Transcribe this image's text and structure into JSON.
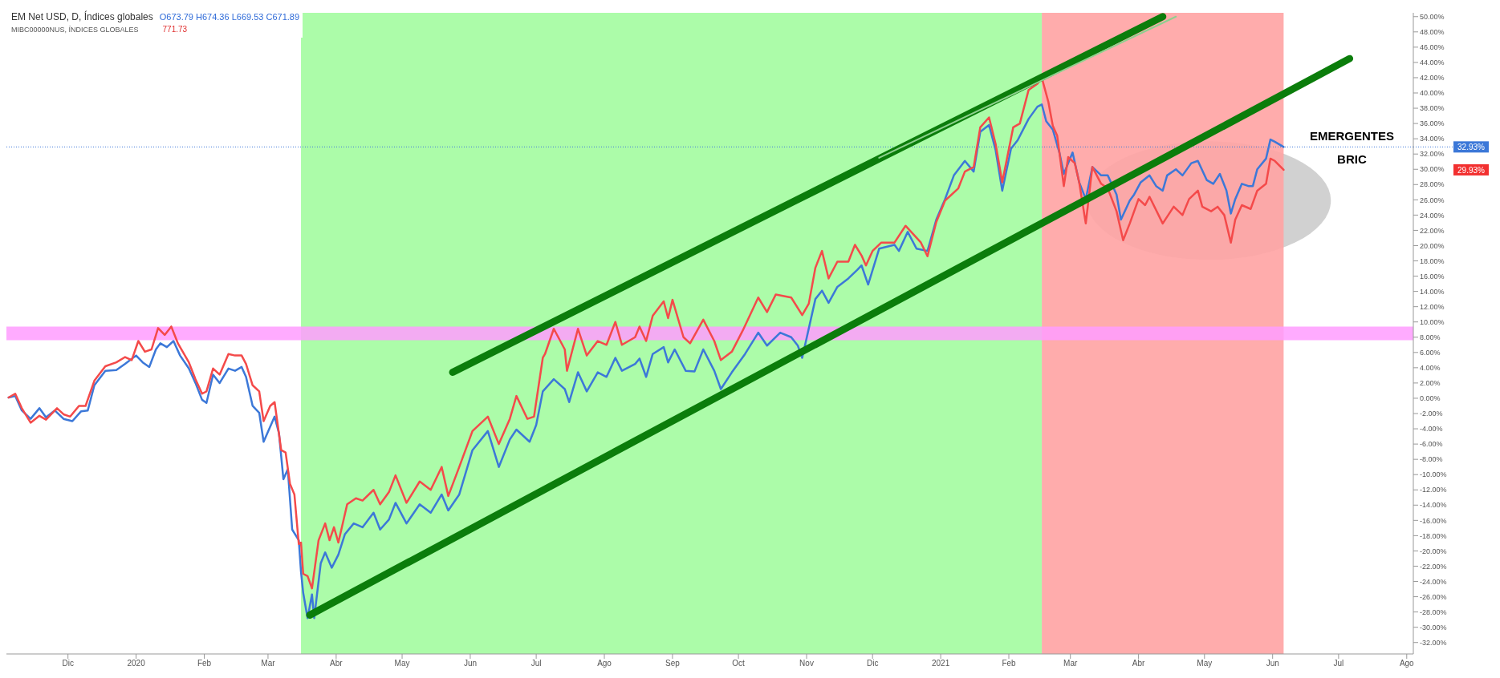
{
  "chart_data": {
    "type": "line",
    "title": "EM Net USD, D, Índices globales",
    "subtitle": "O673.79 H674.36 L669.53 C671.89",
    "annotations": [
      "MIBC00000NUS, ÍNDICES GLOBALES",
      "771.73",
      "29.93%"
    ],
    "xlim": [
      "2019-11-03",
      "2021-08-04"
    ],
    "xticks": [
      {
        "value": "2019-12-01",
        "label": "Dic"
      },
      {
        "value": "2020-01-01",
        "label": "2020"
      },
      {
        "value": "2020-02-01",
        "label": "Feb"
      },
      {
        "value": "2020-03-01",
        "label": "Mar"
      },
      {
        "value": "2020-04-01",
        "label": "Abr"
      },
      {
        "value": "2020-05-01",
        "label": "May"
      },
      {
        "value": "2020-06-01",
        "label": "Jun"
      },
      {
        "value": "2020-07-01",
        "label": "Jul"
      },
      {
        "value": "2020-08-01",
        "label": "Ago"
      },
      {
        "value": "2020-09-01",
        "label": "Sep"
      },
      {
        "value": "2020-10-01",
        "label": "Oct"
      },
      {
        "value": "2020-11-01",
        "label": "Nov"
      },
      {
        "value": "2020-12-01",
        "label": "Dic"
      },
      {
        "value": "2021-01-01",
        "label": "2021"
      },
      {
        "value": "2021-02-01",
        "label": "Feb"
      },
      {
        "value": "2021-03-01",
        "label": "Mar"
      },
      {
        "value": "2021-04-01",
        "label": "Abr"
      },
      {
        "value": "2021-05-01",
        "label": "May"
      },
      {
        "value": "2021-06-01",
        "label": "Jun"
      },
      {
        "value": "2021-07-01",
        "label": "Jul"
      },
      {
        "value": "2021-08-01",
        "label": "Ago"
      }
    ],
    "ylim": [
      -33.5,
      50.5
    ],
    "yticks": [
      {
        "value": -32,
        "label": "-32.00%"
      },
      {
        "value": -30,
        "label": "-30.00%"
      },
      {
        "value": -28,
        "label": "-28.00%"
      },
      {
        "value": -26,
        "label": "-26.00%"
      },
      {
        "value": -24,
        "label": "-24.00%"
      },
      {
        "value": -22,
        "label": "-22.00%"
      },
      {
        "value": -20,
        "label": "-20.00%"
      },
      {
        "value": -18,
        "label": "-18.00%"
      },
      {
        "value": -16,
        "label": "-16.00%"
      },
      {
        "value": -14,
        "label": "-14.00%"
      },
      {
        "value": -12,
        "label": "-12.00%"
      },
      {
        "value": -10,
        "label": "-10.00%"
      },
      {
        "value": -8,
        "label": "-8.00%"
      },
      {
        "value": -6,
        "label": "-6.00%"
      },
      {
        "value": -4,
        "label": "-4.00%"
      },
      {
        "value": -2,
        "label": "-2.00%"
      },
      {
        "value": 0,
        "label": "0.00%"
      },
      {
        "value": 2,
        "label": "2.00%"
      },
      {
        "value": 4,
        "label": "4.00%"
      },
      {
        "value": 6,
        "label": "6.00%"
      },
      {
        "value": 8,
        "label": "8.00%"
      },
      {
        "value": 10,
        "label": "10.00%"
      },
      {
        "value": 12,
        "label": "12.00%"
      },
      {
        "value": 14,
        "label": "14.00%"
      },
      {
        "value": 16,
        "label": "16.00%"
      },
      {
        "value": 18,
        "label": "18.00%"
      },
      {
        "value": 20,
        "label": "20.00%"
      },
      {
        "value": 22,
        "label": "22.00%"
      },
      {
        "value": 24,
        "label": "24.00%"
      },
      {
        "value": 26,
        "label": "26.00%"
      },
      {
        "value": 28,
        "label": "28.00%"
      },
      {
        "value": 30,
        "label": "30.00%"
      },
      {
        "value": 32,
        "label": "32.00%"
      },
      {
        "value": 34,
        "label": "34.00%"
      },
      {
        "value": 36,
        "label": "36.00%"
      },
      {
        "value": 38,
        "label": "38.00%"
      },
      {
        "value": 40,
        "label": "40.00%"
      },
      {
        "value": 42,
        "label": "42.00%"
      },
      {
        "value": 44,
        "label": "44.00%"
      },
      {
        "value": 46,
        "label": "46.00%"
      },
      {
        "value": 48,
        "label": "48.00%"
      },
      {
        "value": 50,
        "label": "50.00%"
      }
    ],
    "marker": "none",
    "bands": [
      {
        "axis": "x",
        "from": "2020-03-16",
        "to": "2021-02-16",
        "color": "#a3fca0"
      },
      {
        "axis": "x",
        "from": "2021-02-16",
        "to": "2021-06-06",
        "color": "#ffa3a3"
      },
      {
        "axis": "y",
        "from": 7.6,
        "to": 9.4,
        "color": "#ff9cff"
      }
    ],
    "ref_lines": [
      {
        "axis": "y",
        "value": 32.93,
        "label": "32.93%",
        "color": "#3c78d8",
        "line_style": "dotted"
      }
    ],
    "series": [
      {
        "name": "EMERGENTES",
        "color": "#3c78d8",
        "x": [
          "2019-11-04",
          "2019-11-07",
          "2019-11-10",
          "2019-11-14",
          "2019-11-18",
          "2019-11-21",
          "2019-11-25",
          "2019-11-29",
          "2019-12-03",
          "2019-12-07",
          "2019-12-10",
          "2019-12-13",
          "2019-12-18",
          "2019-12-23",
          "2019-12-27",
          "2020-01-01",
          "2020-01-04",
          "2020-01-07",
          "2020-01-10",
          "2020-01-12",
          "2020-01-15",
          "2020-01-18",
          "2020-01-21",
          "2020-01-25",
          "2020-01-28",
          "2020-01-31",
          "2020-02-02",
          "2020-02-05",
          "2020-02-08",
          "2020-02-12",
          "2020-02-15",
          "2020-02-18",
          "2020-02-20",
          "2020-02-23",
          "2020-02-26",
          "2020-02-28",
          "2020-03-04",
          "2020-03-06",
          "2020-03-08",
          "2020-03-10",
          "2020-03-12",
          "2020-03-15",
          "2020-03-16",
          "2020-03-17",
          "2020-03-19",
          "2020-03-21",
          "2020-03-22",
          "2020-03-25",
          "2020-03-27",
          "2020-03-30",
          "2020-04-02",
          "2020-04-05",
          "2020-04-09",
          "2020-04-13",
          "2020-04-18",
          "2020-04-21",
          "2020-04-25",
          "2020-04-28",
          "2020-05-03",
          "2020-05-09",
          "2020-05-14",
          "2020-05-19",
          "2020-05-22",
          "2020-05-27",
          "2020-06-02",
          "2020-06-09",
          "2020-06-14",
          "2020-06-19",
          "2020-06-22",
          "2020-06-28",
          "2020-07-01",
          "2020-07-04",
          "2020-07-09",
          "2020-07-14",
          "2020-07-16",
          "2020-07-20",
          "2020-07-24",
          "2020-07-29",
          "2020-08-02",
          "2020-08-06",
          "2020-08-09",
          "2020-08-15",
          "2020-08-17",
          "2020-08-20",
          "2020-08-23",
          "2020-08-28",
          "2020-08-30",
          "2020-09-02",
          "2020-09-07",
          "2020-09-11",
          "2020-09-15",
          "2020-09-20",
          "2020-09-23",
          "2020-09-28",
          "2020-10-04",
          "2020-10-10",
          "2020-10-14",
          "2020-10-20",
          "2020-10-25",
          "2020-10-28",
          "2020-10-30",
          "2020-11-05",
          "2020-11-08",
          "2020-11-11",
          "2020-11-15",
          "2020-11-20",
          "2020-11-24",
          "2020-11-26",
          "2020-11-29",
          "2020-12-04",
          "2020-12-11",
          "2020-12-13",
          "2020-12-17",
          "2020-12-21",
          "2020-12-26",
          "2020-12-30",
          "2021-01-03",
          "2021-01-07",
          "2021-01-12",
          "2021-01-16",
          "2021-01-19",
          "2021-01-23",
          "2021-01-26",
          "2021-01-29",
          "2021-02-02",
          "2021-02-05",
          "2021-02-10",
          "2021-02-14",
          "2021-02-16",
          "2021-02-18",
          "2021-02-21",
          "2021-02-24",
          "2021-02-26",
          "2021-02-28",
          "2021-03-02",
          "2021-03-05",
          "2021-03-08",
          "2021-03-11",
          "2021-03-15",
          "2021-03-18",
          "2021-03-22",
          "2021-03-24",
          "2021-03-28",
          "2021-03-30",
          "2021-04-02",
          "2021-04-06",
          "2021-04-09",
          "2021-04-12",
          "2021-04-14",
          "2021-04-18",
          "2021-04-21",
          "2021-04-25",
          "2021-04-28",
          "2021-05-02",
          "2021-05-05",
          "2021-05-08",
          "2021-05-11",
          "2021-05-13",
          "2021-05-15",
          "2021-05-18",
          "2021-05-21",
          "2021-05-23",
          "2021-05-25",
          "2021-05-29",
          "2021-05-31",
          "2021-06-02",
          "2021-06-06"
        ],
        "values": [
          0.1,
          0.3,
          -1.6,
          -2.7,
          -1.3,
          -2.5,
          -1.6,
          -2.7,
          -3.0,
          -1.7,
          -1.6,
          1.7,
          3.6,
          3.7,
          4.5,
          5.6,
          4.7,
          4.1,
          6.4,
          7.2,
          6.7,
          7.5,
          5.6,
          3.9,
          2.0,
          -0.2,
          -0.6,
          3.1,
          2.0,
          3.9,
          3.6,
          4.1,
          2.8,
          -1.0,
          -1.9,
          -5.7,
          -2.4,
          -4.6,
          -10.6,
          -9.3,
          -17.2,
          -18.6,
          -22.7,
          -25.5,
          -28.8,
          -25.7,
          -28.8,
          -21.6,
          -20.2,
          -22.2,
          -20.5,
          -17.8,
          -16.4,
          -16.9,
          -15.0,
          -17.2,
          -15.9,
          -13.7,
          -16.4,
          -13.9,
          -15.0,
          -12.6,
          -14.7,
          -12.6,
          -6.8,
          -4.3,
          -9.0,
          -5.4,
          -4.1,
          -5.7,
          -3.5,
          0.9,
          2.5,
          1.2,
          -0.5,
          3.4,
          0.9,
          3.4,
          2.8,
          5.3,
          3.6,
          4.5,
          5.2,
          2.8,
          5.8,
          6.7,
          4.7,
          6.4,
          3.6,
          3.5,
          6.4,
          3.6,
          1.2,
          3.4,
          5.8,
          8.6,
          6.9,
          8.6,
          8.0,
          6.9,
          5.3,
          13.0,
          14.1,
          12.5,
          14.6,
          15.7,
          16.8,
          17.4,
          14.9,
          19.6,
          20.1,
          19.3,
          21.8,
          19.6,
          19.3,
          23.4,
          26.1,
          29.2,
          31.1,
          29.7,
          34.9,
          35.8,
          32.5,
          27.2,
          32.7,
          33.8,
          36.6,
          38.2,
          38.5,
          36.3,
          35.2,
          32.2,
          29.4,
          30.8,
          32.2,
          28.3,
          26.1,
          30.3,
          29.2,
          29.2,
          26.7,
          23.4,
          25.9,
          26.7,
          28.3,
          29.2,
          27.8,
          27.2,
          29.2,
          30.0,
          29.2,
          30.8,
          31.1,
          28.6,
          28.1,
          29.4,
          27.2,
          24.2,
          26.1,
          28.1,
          27.8,
          27.8,
          30.0,
          31.4,
          33.9,
          33.6,
          32.93
        ]
      },
      {
        "name": "BRIC",
        "color": "#f44a4a",
        "x": [
          "2019-11-04",
          "2019-11-07",
          "2019-11-10",
          "2019-11-14",
          "2019-11-18",
          "2019-11-21",
          "2019-11-26",
          "2019-11-29",
          "2019-12-02",
          "2019-12-06",
          "2019-12-09",
          "2019-12-13",
          "2019-12-18",
          "2019-12-23",
          "2019-12-27",
          "2019-12-30",
          "2020-01-02",
          "2020-01-05",
          "2020-01-08",
          "2020-01-11",
          "2020-01-14",
          "2020-01-17",
          "2020-01-20",
          "2020-01-25",
          "2020-01-28",
          "2020-01-31",
          "2020-02-02",
          "2020-02-05",
          "2020-02-08",
          "2020-02-12",
          "2020-02-15",
          "2020-02-18",
          "2020-02-20",
          "2020-02-23",
          "2020-02-26",
          "2020-02-28",
          "2020-03-02",
          "2020-03-04",
          "2020-03-07",
          "2020-03-09",
          "2020-03-11",
          "2020-03-13",
          "2020-03-15",
          "2020-03-16",
          "2020-03-17",
          "2020-03-19",
          "2020-03-21",
          "2020-03-24",
          "2020-03-27",
          "2020-03-29",
          "2020-03-31",
          "2020-04-02",
          "2020-04-06",
          "2020-04-10",
          "2020-04-13",
          "2020-04-18",
          "2020-04-21",
          "2020-04-25",
          "2020-04-28",
          "2020-05-03",
          "2020-05-09",
          "2020-05-14",
          "2020-05-19",
          "2020-05-22",
          "2020-05-27",
          "2020-06-02",
          "2020-06-09",
          "2020-06-14",
          "2020-06-19",
          "2020-06-22",
          "2020-06-27",
          "2020-06-30",
          "2020-07-04",
          "2020-07-05",
          "2020-07-09",
          "2020-07-14",
          "2020-07-15",
          "2020-07-20",
          "2020-07-24",
          "2020-07-29",
          "2020-08-02",
          "2020-08-06",
          "2020-08-09",
          "2020-08-15",
          "2020-08-17",
          "2020-08-20",
          "2020-08-23",
          "2020-08-28",
          "2020-08-30",
          "2020-09-01",
          "2020-09-06",
          "2020-09-09",
          "2020-09-15",
          "2020-09-20",
          "2020-09-23",
          "2020-09-28",
          "2020-10-03",
          "2020-10-10",
          "2020-10-14",
          "2020-10-18",
          "2020-10-25",
          "2020-10-30",
          "2020-11-02",
          "2020-11-05",
          "2020-11-08",
          "2020-11-11",
          "2020-11-15",
          "2020-11-20",
          "2020-11-23",
          "2020-11-26",
          "2020-11-28",
          "2020-12-01",
          "2020-12-05",
          "2020-12-11",
          "2020-12-16",
          "2020-12-23",
          "2020-12-26",
          "2020-12-30",
          "2021-01-03",
          "2021-01-09",
          "2021-01-12",
          "2021-01-16",
          "2021-01-19",
          "2021-01-23",
          "2021-01-26",
          "2021-01-29",
          "2021-02-03",
          "2021-02-06",
          "2021-02-10",
          "2021-02-14",
          "2021-02-16",
          "2021-02-19",
          "2021-02-21",
          "2021-02-23",
          "2021-02-26",
          "2021-02-28",
          "2021-03-03",
          "2021-03-05",
          "2021-03-08",
          "2021-03-11",
          "2021-03-15",
          "2021-03-18",
          "2021-03-22",
          "2021-03-25",
          "2021-03-28",
          "2021-04-01",
          "2021-04-04",
          "2021-04-06",
          "2021-04-12",
          "2021-04-17",
          "2021-04-21",
          "2021-04-24",
          "2021-04-28",
          "2021-04-30",
          "2021-05-04",
          "2021-05-07",
          "2021-05-10",
          "2021-05-13",
          "2021-05-15",
          "2021-05-18",
          "2021-05-22",
          "2021-05-25",
          "2021-05-29",
          "2021-05-31",
          "2021-06-02",
          "2021-06-06"
        ],
        "values": [
          0.1,
          0.6,
          -1.3,
          -3.2,
          -2.3,
          -2.8,
          -1.3,
          -2.1,
          -2.4,
          -1.0,
          -1.0,
          2.3,
          4.2,
          4.7,
          5.4,
          5.0,
          7.5,
          6.1,
          6.4,
          9.2,
          8.3,
          9.4,
          7.2,
          4.7,
          2.5,
          0.6,
          0.9,
          3.9,
          3.1,
          5.8,
          5.6,
          5.6,
          4.5,
          1.7,
          0.9,
          -3.0,
          -1.0,
          -0.5,
          -6.8,
          -7.1,
          -11.2,
          -12.6,
          -19.1,
          -18.9,
          -23.0,
          -23.3,
          -24.9,
          -18.6,
          -16.4,
          -18.6,
          -16.9,
          -18.9,
          -13.9,
          -13.1,
          -13.4,
          -12.0,
          -13.9,
          -12.3,
          -10.1,
          -13.7,
          -10.9,
          -12.0,
          -9.0,
          -12.8,
          -9.0,
          -4.3,
          -2.4,
          -6.0,
          -2.7,
          0.3,
          -2.7,
          -2.4,
          5.3,
          5.8,
          9.1,
          6.4,
          3.6,
          9.1,
          5.6,
          7.5,
          7.0,
          10.0,
          7.0,
          8.0,
          9.4,
          7.5,
          10.8,
          12.7,
          10.5,
          12.9,
          8.0,
          7.2,
          10.3,
          7.5,
          5.0,
          6.1,
          8.9,
          13.2,
          11.3,
          13.6,
          13.2,
          10.9,
          12.4,
          17.1,
          19.3,
          15.7,
          17.9,
          17.9,
          20.1,
          18.7,
          17.4,
          19.3,
          20.4,
          20.4,
          22.6,
          20.4,
          18.6,
          23.1,
          25.9,
          27.5,
          29.7,
          30.3,
          35.5,
          36.8,
          33.3,
          28.3,
          35.5,
          36.0,
          40.4,
          41.2,
          42.0,
          38.8,
          35.7,
          34.4,
          27.8,
          31.6,
          30.8,
          28.3,
          22.9,
          30.3,
          28.1,
          27.5,
          24.5,
          20.7,
          22.9,
          26.1,
          25.3,
          26.4,
          22.9,
          25.1,
          24.0,
          26.1,
          27.2,
          25.1,
          24.5,
          25.1,
          24.0,
          20.4,
          23.4,
          25.3,
          24.8,
          27.2,
          28.1,
          31.4,
          31.1,
          29.93
        ]
      },
      {
        "type": "line",
        "color": "#0b7d0b",
        "x": [
          "2020-05-24",
          "2021-04-12"
        ],
        "values": [
          3.4,
          50
        ]
      },
      {
        "type": "line",
        "color": "#8fd08f",
        "x": [
          "2020-12-04",
          "2021-04-18"
        ],
        "values": [
          31.5,
          50
        ]
      },
      {
        "type": "line",
        "color": "#0b7d0b",
        "x": [
          "2020-03-20",
          "2021-07-06"
        ],
        "values": [
          -28.4,
          44.5
        ]
      }
    ]
  }
}
